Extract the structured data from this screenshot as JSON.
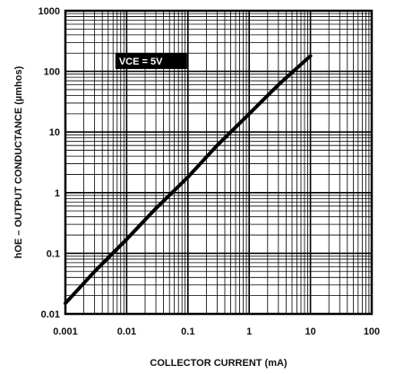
{
  "chart_data": {
    "type": "line",
    "xscale": "log",
    "yscale": "log",
    "xlim": [
      0.001,
      100
    ],
    "ylim": [
      0.01,
      1000
    ],
    "x_ticks": [
      "0.001",
      "0.01",
      "0.1",
      "1",
      "10",
      "100"
    ],
    "y_ticks": [
      "1000",
      "100",
      "10",
      "1",
      "0.1",
      "0.01"
    ],
    "xlabel": "COLLECTOR CURRENT (mA)",
    "ylabel": "hOE – OUTPUT CONDUCTANCE (µmhos)",
    "annotation": "VCE = 5V",
    "grid": true,
    "series": [
      {
        "x": [
          0.001,
          0.003,
          0.01,
          0.03,
          0.1,
          0.3,
          1,
          3,
          10
        ],
        "y": [
          0.015,
          0.05,
          0.17,
          0.55,
          1.8,
          6,
          20,
          60,
          180
        ]
      }
    ]
  }
}
